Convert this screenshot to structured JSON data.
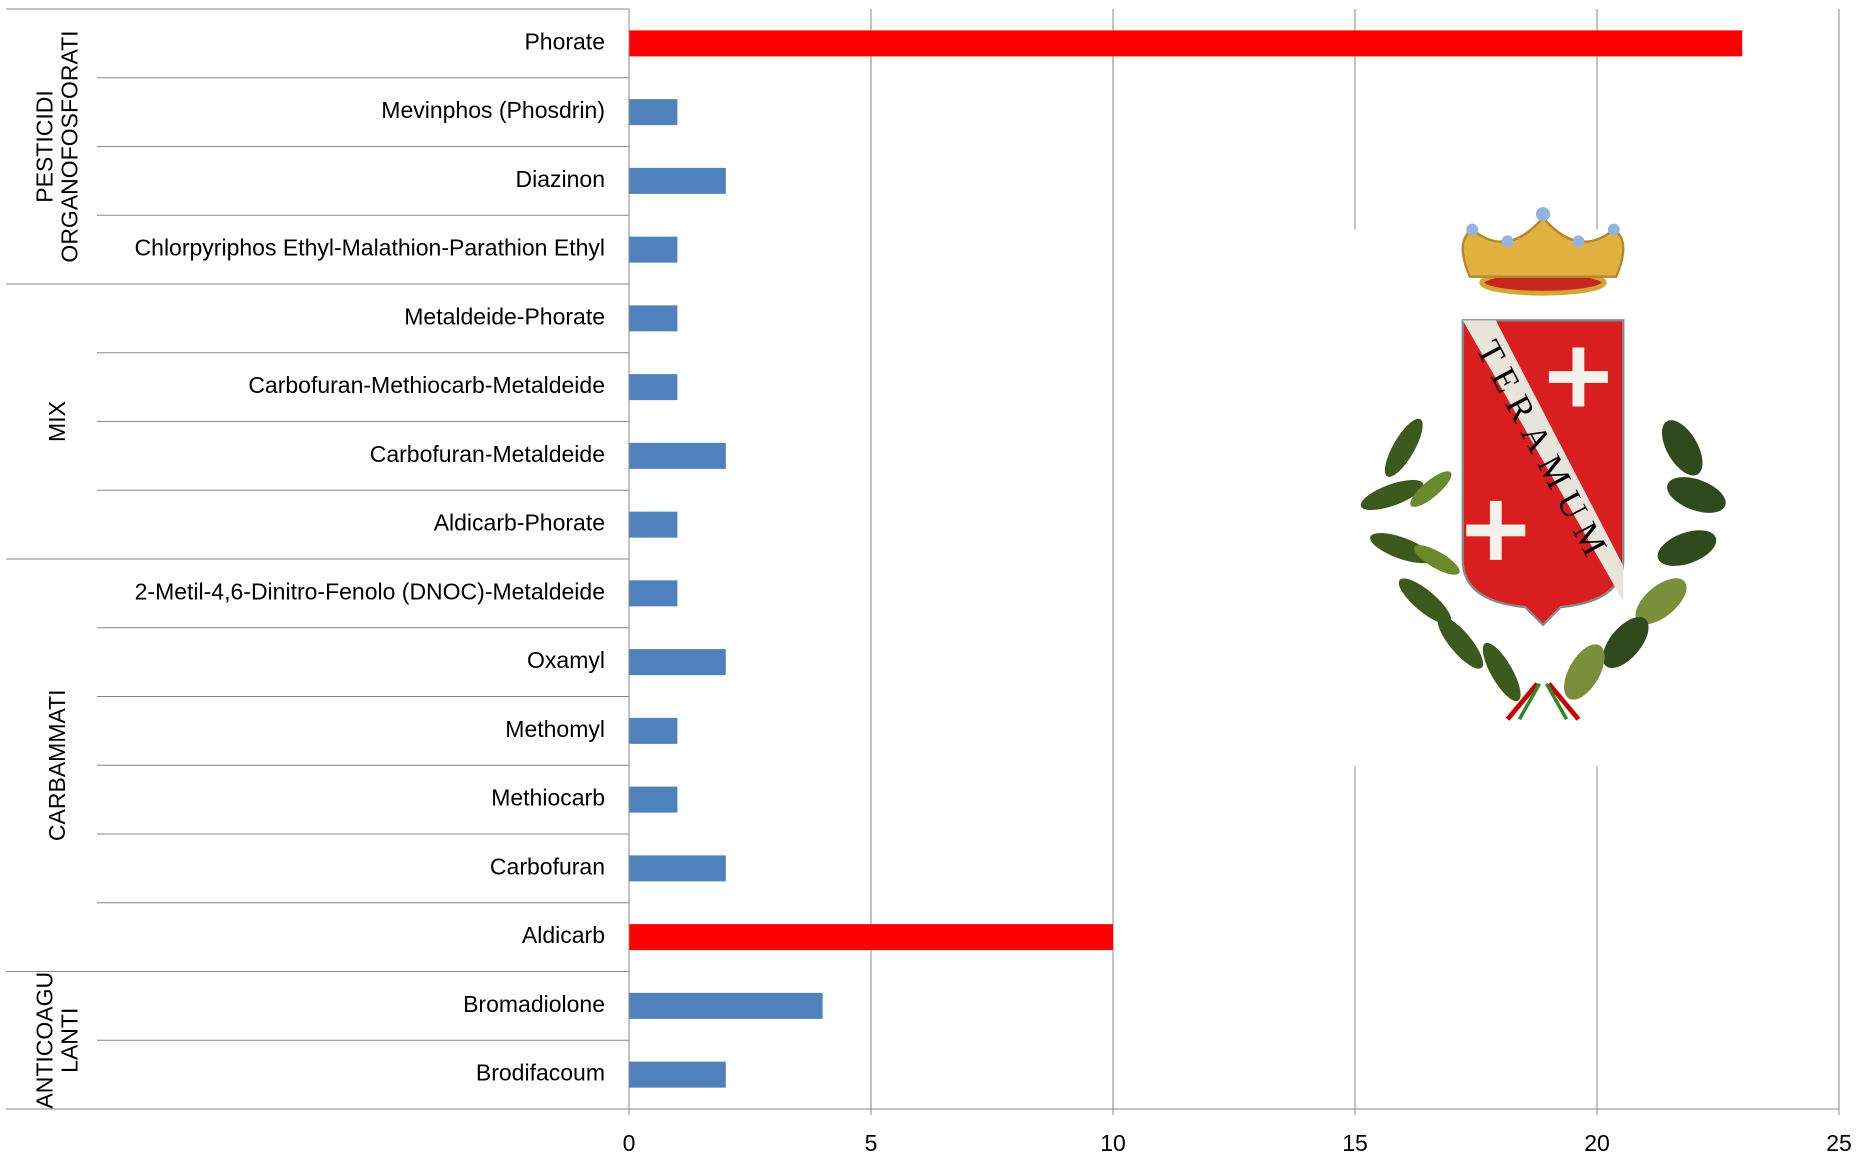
{
  "chart_data": {
    "type": "bar",
    "orientation": "horizontal",
    "groups": [
      {
        "name": [
          "PESTICIDI",
          "ORGANOFOSFORATI"
        ],
        "categories": [
          "Phorate",
          "Mevinphos (Phosdrin)",
          "Diazinon",
          "Chlorpyriphos Ethyl-Malathion-Parathion Ethyl"
        ],
        "values": [
          23,
          1,
          2,
          1
        ],
        "colors": [
          "#ff0000",
          "#4f81bd",
          "#4f81bd",
          "#4f81bd"
        ]
      },
      {
        "name": [
          "MIX"
        ],
        "categories": [
          "Metaldeide-Phorate",
          "Carbofuran-Methiocarb-Metaldeide",
          "Carbofuran-Metaldeide",
          "Aldicarb-Phorate"
        ],
        "values": [
          1,
          1,
          2,
          1
        ],
        "colors": [
          "#4f81bd",
          "#4f81bd",
          "#4f81bd",
          "#4f81bd"
        ]
      },
      {
        "name": [
          "CARBAMMATI"
        ],
        "categories": [
          "2-Metil-4,6-Dinitro-Fenolo (DNOC)-Metaldeide",
          "Oxamyl",
          "Methomyl",
          "Methiocarb",
          "Carbofuran",
          "Aldicarb"
        ],
        "values": [
          1,
          2,
          1,
          1,
          2,
          10
        ],
        "colors": [
          "#4f81bd",
          "#4f81bd",
          "#4f81bd",
          "#4f81bd",
          "#4f81bd",
          "#ff0000"
        ]
      },
      {
        "name": [
          "ANTICOAGU",
          "LANTI"
        ],
        "categories": [
          "Bromadiolone",
          "Brodifacoum"
        ],
        "values": [
          4,
          2
        ],
        "colors": [
          "#4f81bd",
          "#4f81bd"
        ]
      }
    ],
    "xlim": [
      0,
      25
    ],
    "xticks": [
      0,
      5,
      10,
      15,
      20,
      25
    ],
    "grid": true
  },
  "logo": {
    "text": "TERAMUM"
  }
}
